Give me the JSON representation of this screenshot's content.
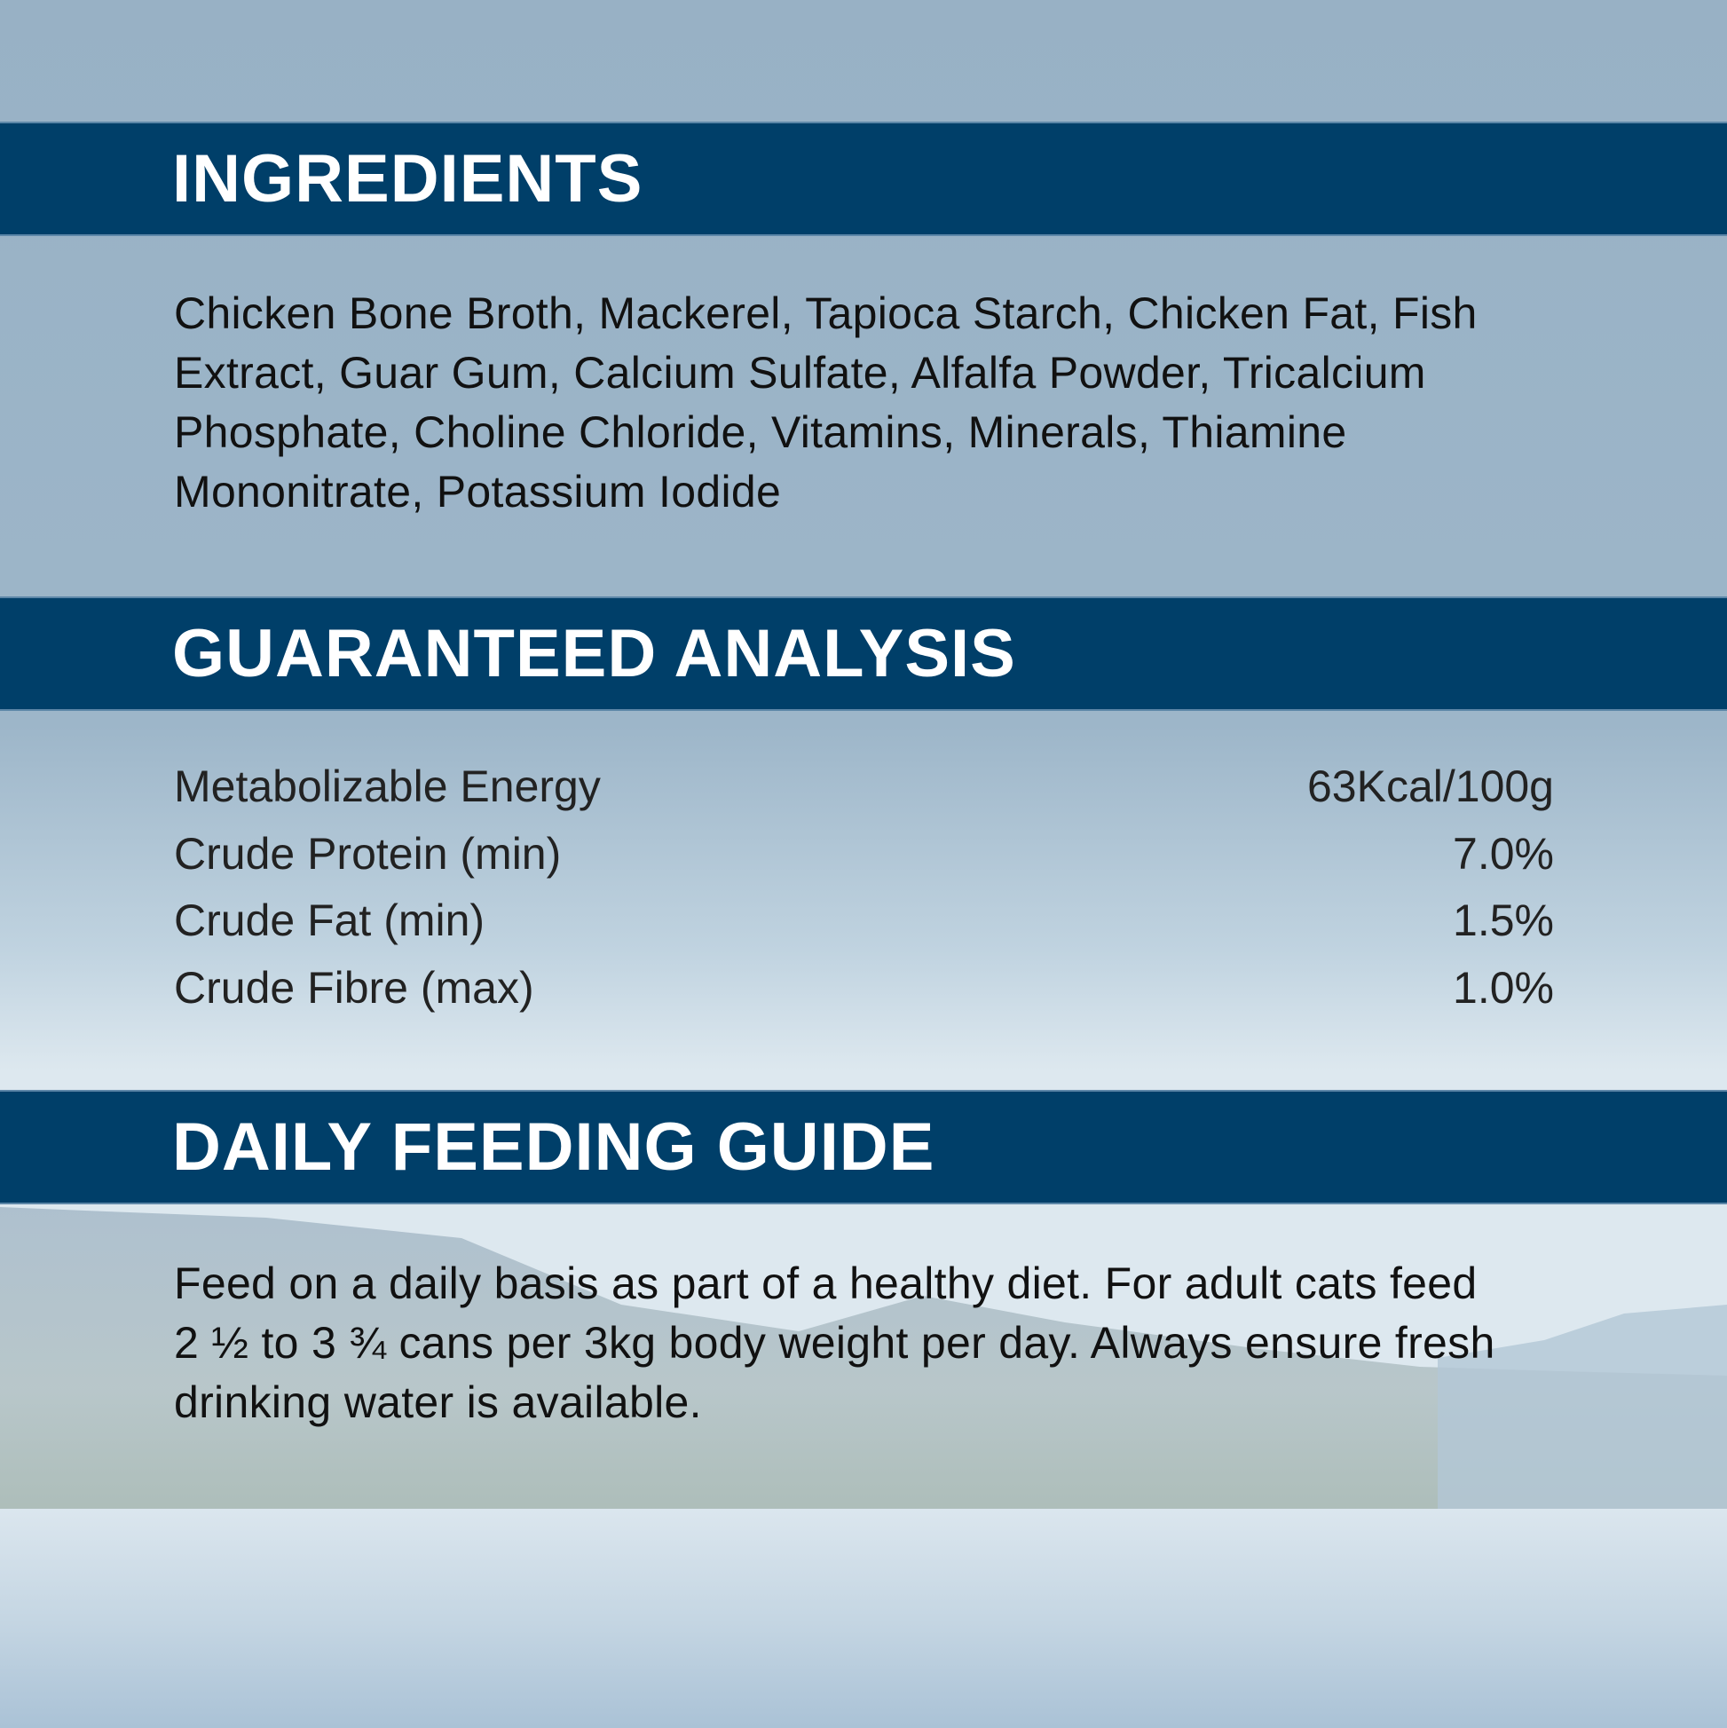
{
  "ingredients": {
    "title": "INGREDIENTS",
    "text": "Chicken Bone Broth, Mackerel, Tapioca Starch, Chicken Fat, Fish Extract, Guar Gum, Calcium Sulfate, Alfalfa Powder, Tricalcium Phosphate, Choline Chloride, Vitamins, Minerals, Thiamine Mononitrate, Potassium Iodide"
  },
  "analysis": {
    "title": "GUARANTEED ANALYSIS",
    "rows": [
      {
        "label": "Metabolizable Energy",
        "value": "63Kcal/100g"
      },
      {
        "label": "Crude Protein (min)",
        "value": "7.0%"
      },
      {
        "label": "Crude Fat (min)",
        "value": "1.5%"
      },
      {
        "label": "Crude Fibre (max)",
        "value": "1.0%"
      }
    ]
  },
  "feeding": {
    "title": "DAILY FEEDING GUIDE",
    "text": "Feed on a daily basis as part of a healthy diet. For adult cats feed 2 ½ to 3 ¾ cans per 3kg body weight per day. Always ensure fresh drinking water is available."
  },
  "colors": {
    "banner": "#003f69",
    "background": "#98b1c5"
  }
}
